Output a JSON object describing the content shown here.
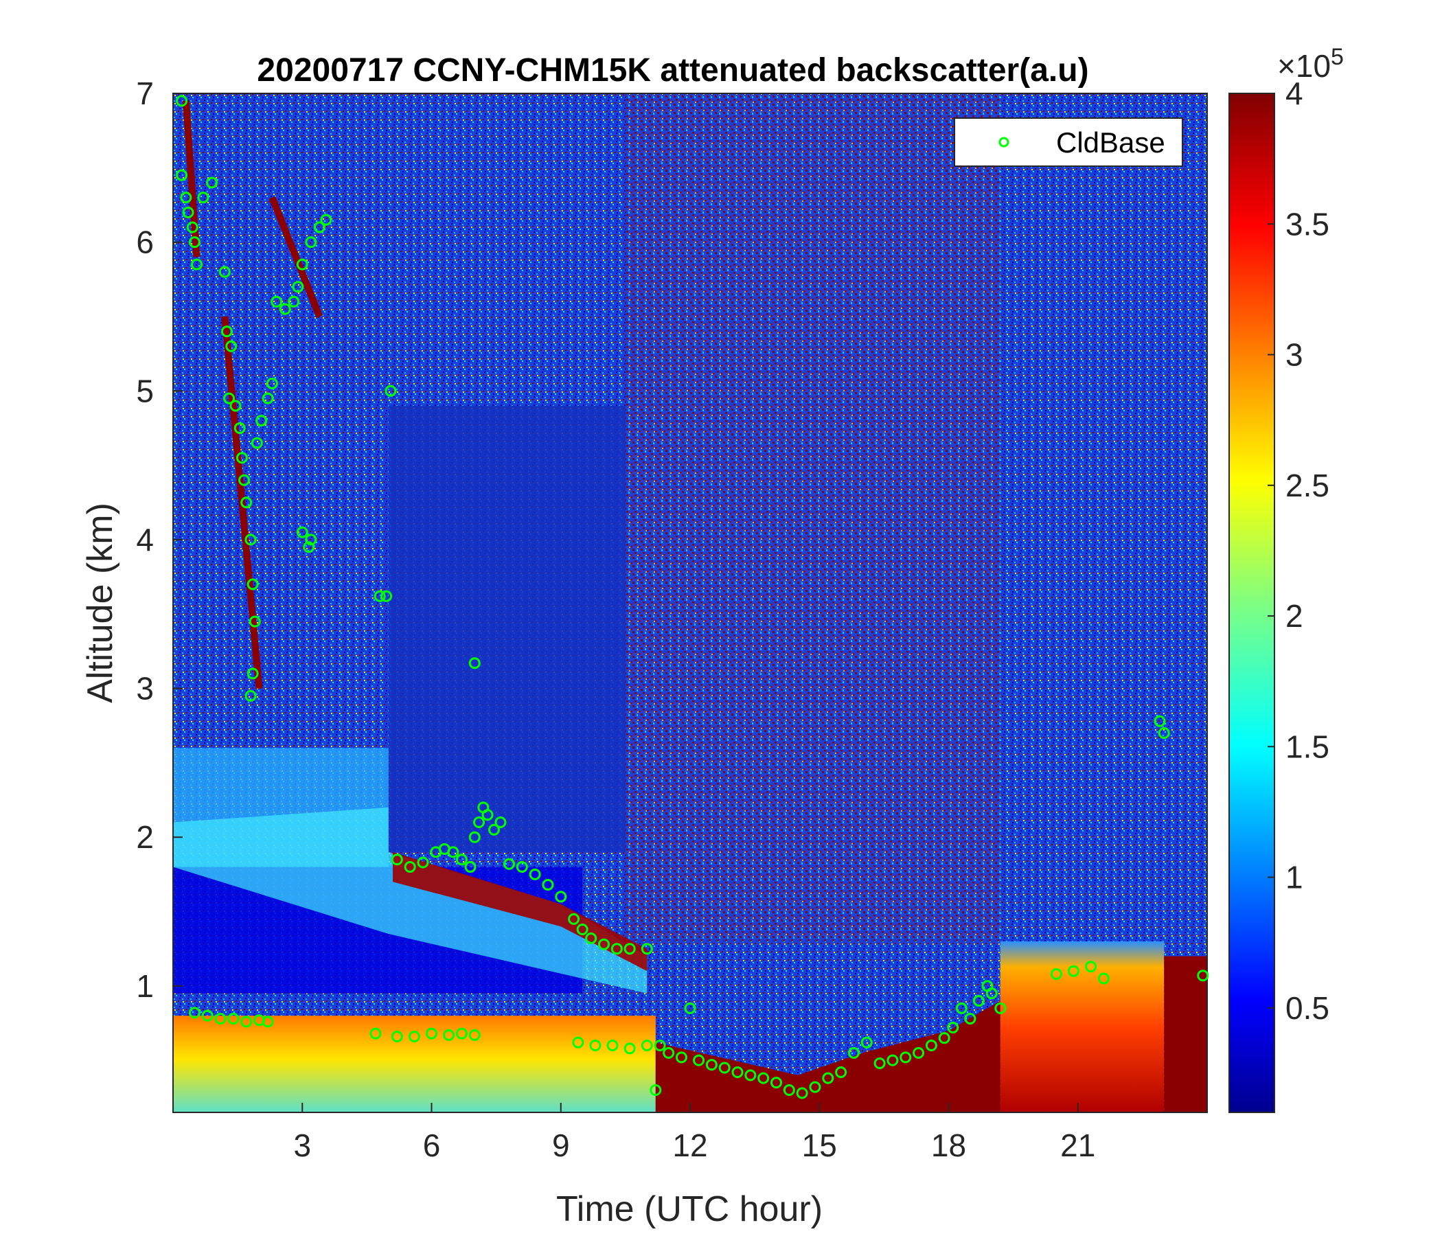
{
  "chart_data": {
    "type": "heatmap",
    "title": "20200717 CCNY-CHM15K attenuated backscatter(a.u)",
    "xlabel": "Time (UTC hour)",
    "ylabel": "Altitude (km)",
    "xlim": [
      0,
      24
    ],
    "ylim": [
      0.15,
      7
    ],
    "xticks": [
      3,
      6,
      9,
      12,
      15,
      18,
      21
    ],
    "xtick_labels": [
      "3",
      "6",
      "9",
      "12",
      "15",
      "18",
      "21"
    ],
    "yticks": [
      1,
      2,
      3,
      4,
      5,
      6,
      7
    ],
    "ytick_labels": [
      "1",
      "2",
      "3",
      "4",
      "5",
      "6",
      "7"
    ],
    "colormap": "jet",
    "colorbar": {
      "range": [
        0.1,
        4
      ],
      "ticks": [
        0.5,
        1,
        1.5,
        2,
        2.5,
        3,
        3.5,
        4
      ],
      "tick_labels": [
        "0.5",
        "1",
        "1.5",
        "2",
        "2.5",
        "3",
        "3.5",
        "4"
      ],
      "multiplier_prefix": "×10",
      "multiplier_exponent": "5"
    },
    "legend": {
      "position": "top-right",
      "entries": [
        "CldBase"
      ]
    },
    "series": [
      {
        "name": "CldBase",
        "marker": "circle",
        "color": "#00ff00",
        "points": [
          [
            0.2,
            6.95
          ],
          [
            0.2,
            6.45
          ],
          [
            0.3,
            6.3
          ],
          [
            0.35,
            6.2
          ],
          [
            0.45,
            6.1
          ],
          [
            0.5,
            6.0
          ],
          [
            0.55,
            5.85
          ],
          [
            0.7,
            6.3
          ],
          [
            0.9,
            6.4
          ],
          [
            1.2,
            5.8
          ],
          [
            1.25,
            5.4
          ],
          [
            1.35,
            5.3
          ],
          [
            1.3,
            4.95
          ],
          [
            1.45,
            4.9
          ],
          [
            1.55,
            4.75
          ],
          [
            1.6,
            4.55
          ],
          [
            1.65,
            4.4
          ],
          [
            1.7,
            4.25
          ],
          [
            1.8,
            4.0
          ],
          [
            1.85,
            3.7
          ],
          [
            1.9,
            3.45
          ],
          [
            1.85,
            3.1
          ],
          [
            1.8,
            2.95
          ],
          [
            1.95,
            4.65
          ],
          [
            2.05,
            4.8
          ],
          [
            2.2,
            4.95
          ],
          [
            2.3,
            5.05
          ],
          [
            2.4,
            5.6
          ],
          [
            2.6,
            5.55
          ],
          [
            2.8,
            5.6
          ],
          [
            2.9,
            5.7
          ],
          [
            3.0,
            5.85
          ],
          [
            3.2,
            6.0
          ],
          [
            3.4,
            6.1
          ],
          [
            3.55,
            6.15
          ],
          [
            3.0,
            4.05
          ],
          [
            3.15,
            3.95
          ],
          [
            3.2,
            4.0
          ],
          [
            4.8,
            3.62
          ],
          [
            4.95,
            3.62
          ],
          [
            5.05,
            5.0
          ],
          [
            0.5,
            0.82
          ],
          [
            0.8,
            0.8
          ],
          [
            1.1,
            0.78
          ],
          [
            1.4,
            0.78
          ],
          [
            1.7,
            0.76
          ],
          [
            2.0,
            0.77
          ],
          [
            2.2,
            0.76
          ],
          [
            4.7,
            0.68
          ],
          [
            5.2,
            0.66
          ],
          [
            5.6,
            0.66
          ],
          [
            6.0,
            0.68
          ],
          [
            6.4,
            0.67
          ],
          [
            6.7,
            0.68
          ],
          [
            7.0,
            0.67
          ],
          [
            5.2,
            1.85
          ],
          [
            5.5,
            1.8
          ],
          [
            5.8,
            1.83
          ],
          [
            6.1,
            1.9
          ],
          [
            6.3,
            1.92
          ],
          [
            6.5,
            1.9
          ],
          [
            6.7,
            1.85
          ],
          [
            6.9,
            1.8
          ],
          [
            7.0,
            2.0
          ],
          [
            7.1,
            2.1
          ],
          [
            7.2,
            2.2
          ],
          [
            7.3,
            2.15
          ],
          [
            7.45,
            2.05
          ],
          [
            7.6,
            2.1
          ],
          [
            7.8,
            1.82
          ],
          [
            8.1,
            1.8
          ],
          [
            8.4,
            1.75
          ],
          [
            8.7,
            1.68
          ],
          [
            9.0,
            1.6
          ],
          [
            9.3,
            1.45
          ],
          [
            9.5,
            1.38
          ],
          [
            9.7,
            1.32
          ],
          [
            10.0,
            1.28
          ],
          [
            10.3,
            1.25
          ],
          [
            10.6,
            1.25
          ],
          [
            11.0,
            1.25
          ],
          [
            7.0,
            3.17
          ],
          [
            9.4,
            0.62
          ],
          [
            9.8,
            0.6
          ],
          [
            10.2,
            0.6
          ],
          [
            10.6,
            0.58
          ],
          [
            11.0,
            0.6
          ],
          [
            11.3,
            0.6
          ],
          [
            11.2,
            0.3
          ],
          [
            11.5,
            0.55
          ],
          [
            11.8,
            0.52
          ],
          [
            12.0,
            0.85
          ],
          [
            12.2,
            0.5
          ],
          [
            12.5,
            0.47
          ],
          [
            12.8,
            0.45
          ],
          [
            13.1,
            0.42
          ],
          [
            13.4,
            0.4
          ],
          [
            13.7,
            0.38
          ],
          [
            14.0,
            0.35
          ],
          [
            14.3,
            0.3
          ],
          [
            14.6,
            0.28
          ],
          [
            14.9,
            0.32
          ],
          [
            15.2,
            0.38
          ],
          [
            15.5,
            0.42
          ],
          [
            15.8,
            0.55
          ],
          [
            16.1,
            0.62
          ],
          [
            16.4,
            0.48
          ],
          [
            16.7,
            0.5
          ],
          [
            17.0,
            0.52
          ],
          [
            17.3,
            0.55
          ],
          [
            17.6,
            0.6
          ],
          [
            17.9,
            0.65
          ],
          [
            18.1,
            0.72
          ],
          [
            18.3,
            0.85
          ],
          [
            18.5,
            0.78
          ],
          [
            18.7,
            0.9
          ],
          [
            18.9,
            1.0
          ],
          [
            19.0,
            0.95
          ],
          [
            19.2,
            0.85
          ],
          [
            20.5,
            1.08
          ],
          [
            20.9,
            1.1
          ],
          [
            21.3,
            1.13
          ],
          [
            21.6,
            1.05
          ],
          [
            22.9,
            2.78
          ],
          [
            23.0,
            2.7
          ],
          [
            23.9,
            1.07
          ]
        ]
      }
    ]
  }
}
